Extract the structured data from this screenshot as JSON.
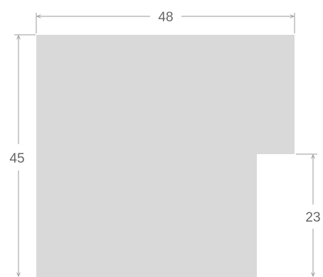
{
  "diagram": {
    "shape_fill": "#d9d9d9",
    "line_color": "#9a9a9a",
    "text_color": "#666666",
    "dimensions": {
      "top_width": "48",
      "left_height": "45",
      "right_height": "23"
    }
  }
}
